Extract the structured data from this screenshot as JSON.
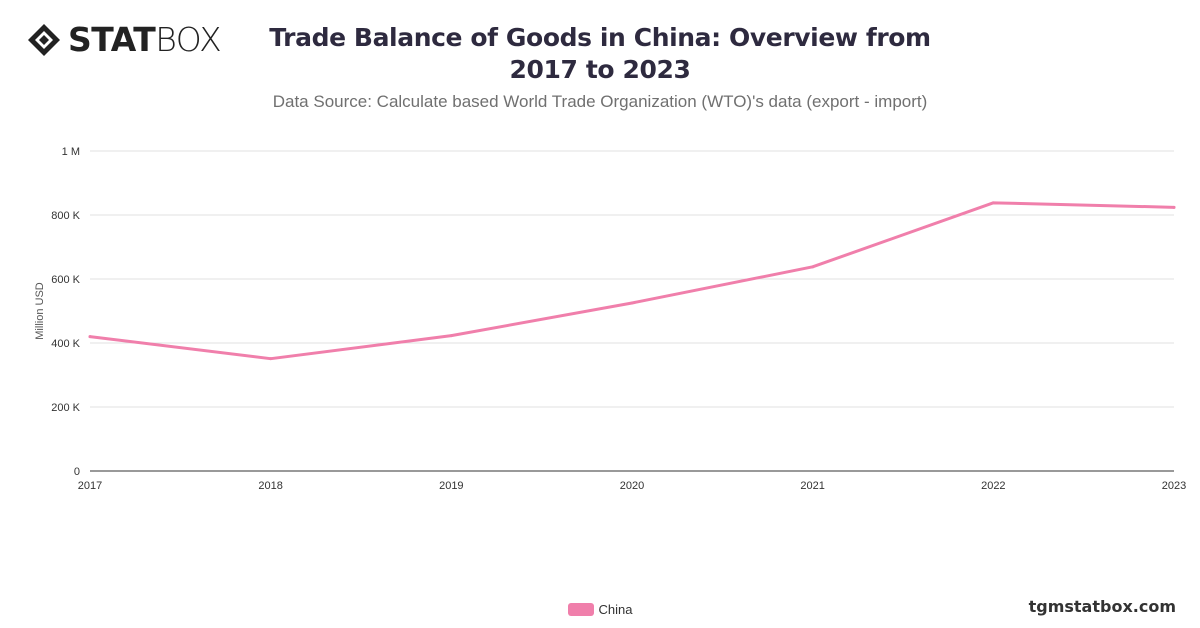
{
  "logo": {
    "text_bold": "STAT",
    "text_light": "BOX",
    "icon": "diamond-logo-icon"
  },
  "footer": {
    "watermark": "tgmstatbox.com"
  },
  "colors": {
    "series": "#f07fab",
    "grid": "#e0e0e0",
    "axis": "#333333"
  },
  "chart_data": {
    "type": "line",
    "title": "Trade Balance of Goods in China: Overview from 2017 to 2023",
    "subtitle": "Data Source: Calculate based World Trade Organization (WTO)'s data (export - import)",
    "xlabel": "",
    "ylabel": "Million USD",
    "x": [
      "2017",
      "2018",
      "2019",
      "2020",
      "2021",
      "2022",
      "2023"
    ],
    "series": [
      {
        "name": "China",
        "values": [
          420000,
          351000,
          423000,
          525000,
          638000,
          838000,
          824000
        ]
      }
    ],
    "ylim": [
      0,
      1000000
    ],
    "yticks": [
      {
        "value": 0,
        "label": "0"
      },
      {
        "value": 200000,
        "label": "200 K"
      },
      {
        "value": 400000,
        "label": "400 K"
      },
      {
        "value": 600000,
        "label": "600 K"
      },
      {
        "value": 800000,
        "label": "800 K"
      },
      {
        "value": 1000000,
        "label": "1 M"
      }
    ],
    "grid": true,
    "legend": "bottom-center"
  }
}
